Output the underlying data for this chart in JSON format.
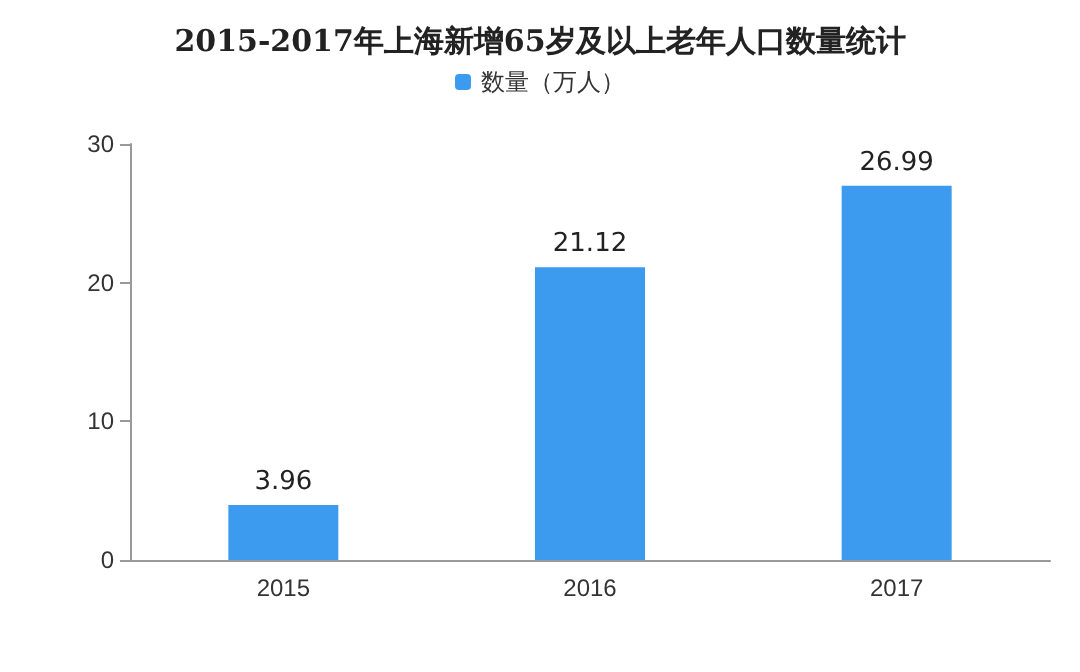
{
  "chart_data": {
    "type": "bar",
    "title": "2015-2017年上海新增65岁及以上老年人口数量统计",
    "categories": [
      "2015",
      "2016",
      "2017"
    ],
    "series": [
      {
        "name": "数量（万人）",
        "color": "#3d9bef",
        "values": [
          3.96,
          21.12,
          26.99
        ]
      }
    ],
    "ylim": [
      0,
      30
    ],
    "yticks": [
      0,
      10,
      20,
      30
    ],
    "grid": false,
    "legend": "top",
    "data_labels": true
  }
}
